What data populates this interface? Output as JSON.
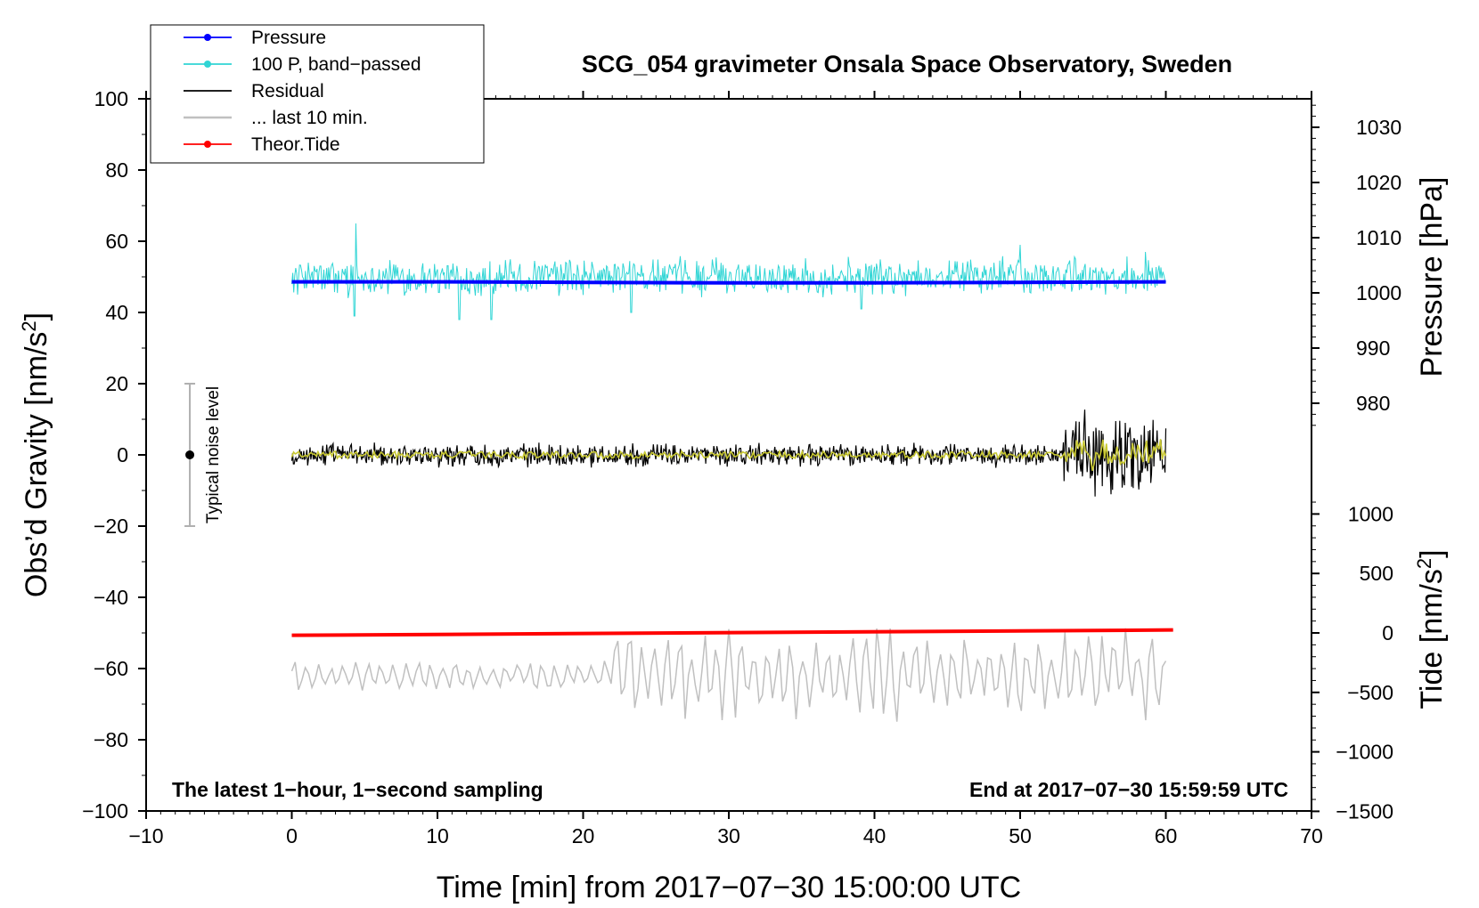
{
  "chart_data": {
    "type": "line",
    "title": "SCG_054 gravimeter Onsala Space Observatory, Sweden",
    "xlabel": "Time [min] from 2017−07−30 15:00:00 UTC",
    "ylabel": "Obs’d Gravity [nm/s²]",
    "ylabel_main": "Obs’d Gravity [nm/s",
    "ylabel_sup": "2",
    "ylabel_end": "]",
    "xlim": [
      -10,
      70
    ],
    "ylim": [
      -100,
      100
    ],
    "x_ticks": [
      "−10",
      "0",
      "10",
      "20",
      "30",
      "40",
      "50",
      "60",
      "70"
    ],
    "y_ticks": [
      "100",
      "80",
      "60",
      "40",
      "20",
      "0",
      "−20",
      "−40",
      "−60",
      "−80",
      "−100"
    ],
    "right_axis_pressure": {
      "label": "Pressure [hPa]",
      "ticks": [
        "1030",
        "1020",
        "1010",
        "1000",
        "990",
        "980"
      ],
      "ylim": [
        975,
        1035
      ]
    },
    "right_axis_tide": {
      "label": "Tide [nm/s²]",
      "label_main": "Tide [nm/s",
      "label_sup": "2",
      "label_end": "]",
      "ticks": [
        "1000",
        "500",
        "0",
        "−500",
        "−1000",
        "−1500"
      ],
      "ylim": [
        -1500,
        1500
      ]
    },
    "legend": {
      "position": "top-left",
      "entries": [
        {
          "label": "Pressure",
          "color": "#0000ff",
          "marker": true
        },
        {
          "label": "100 P, band−passed",
          "color": "#30d5d5",
          "marker": true
        },
        {
          "label": "Residual",
          "color": "#000000",
          "marker": false
        },
        {
          "label": "... last 10 min.",
          "color": "#c0c0c0",
          "marker": false
        },
        {
          "label": "Theor.Tide",
          "color": "#ff0000",
          "marker": true
        }
      ]
    },
    "series": [
      {
        "name": "Pressure",
        "axis": "pressure_hPa",
        "x_range": [
          0,
          60
        ],
        "values_hPa": [
          1002.0,
          1002.0,
          1001.9,
          1001.8,
          1001.8,
          1001.9,
          1002.0
        ],
        "color": "#0000ff"
      },
      {
        "name": "100 P, band-passed",
        "axis": "gravity_nm_s2",
        "x_range": [
          0,
          60
        ],
        "mean": 50,
        "noise_amplitude": 4,
        "spikes": [
          [
            4.4,
            65
          ],
          [
            4.3,
            39
          ],
          [
            11.5,
            38
          ],
          [
            13.7,
            38
          ],
          [
            23.3,
            40
          ],
          [
            39.1,
            41
          ],
          [
            50.0,
            59
          ],
          [
            58.6,
            57
          ]
        ],
        "color": "#30d5d5"
      },
      {
        "name": "Residual",
        "axis": "gravity_nm_s2",
        "x_range": [
          0,
          60
        ],
        "mean": 0,
        "noise_amplitude": 2.5,
        "late_amplitude": 10,
        "late_start": 53,
        "color": "#000000"
      },
      {
        "name": "Residual smoothed",
        "axis": "gravity_nm_s2",
        "x_range": [
          0,
          60
        ],
        "mean": 0,
        "noise_amplitude": 1,
        "color": "#c8c832"
      },
      {
        "name": "... last 10 min.",
        "axis": "gravity_nm_s2_offset",
        "x_range": [
          0,
          60
        ],
        "mean": -62,
        "noise_amplitude": 3,
        "late_amplitude": 9,
        "color": "#c0c0c0"
      },
      {
        "name": "Theor.Tide",
        "axis": "tide_nm_s2",
        "x": [
          0,
          60.5
        ],
        "values": [
          -20,
          25
        ],
        "color": "#ff0000"
      }
    ],
    "noise_bar": {
      "label": "Typical noise level",
      "x": -7,
      "range": [
        -20,
        20
      ],
      "center": 0
    },
    "annotations": {
      "left": "The latest 1−hour, 1−second sampling",
      "right": "End at 2017−07−30 15:59:59 UTC"
    }
  }
}
